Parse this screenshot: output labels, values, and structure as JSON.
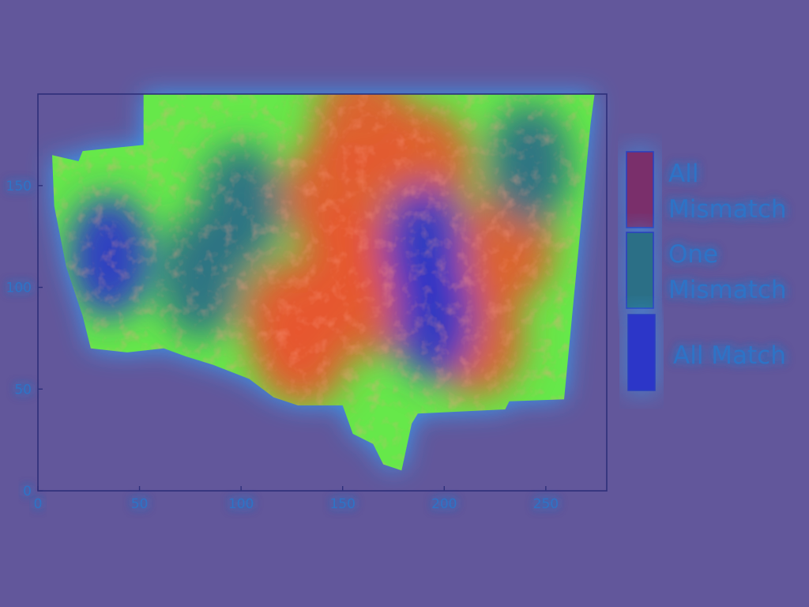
{
  "colors": {
    "background": "#62579b",
    "axis": "#2d2f7a",
    "tick_text": "#2f73c6",
    "glow": "#2ea8ff"
  },
  "chart_data": {
    "type": "heatmap",
    "title": "",
    "xlabel": "",
    "ylabel": "",
    "xlim": [
      0,
      280
    ],
    "ylim": [
      0,
      195
    ],
    "x_ticks": [
      0,
      50,
      100,
      150,
      200,
      250
    ],
    "y_ticks": [
      0,
      50,
      100,
      150
    ],
    "grid": false,
    "legend_position": "right",
    "legend": [
      {
        "label": [
          "All",
          "Mismatch"
        ],
        "color": "#7a2f6b",
        "text_color": "#2f73c6"
      },
      {
        "label": [
          "One",
          "Mismatch"
        ],
        "color": "#2b6f86",
        "text_color": "#2f73c6"
      },
      {
        "label": [
          "All Match"
        ],
        "color": "#2c36c8",
        "text_color": "#2f73c6"
      }
    ],
    "region_outline": [
      [
        7,
        165
      ],
      [
        20,
        162
      ],
      [
        22,
        167
      ],
      [
        52,
        170
      ],
      [
        52,
        195
      ],
      [
        274,
        195
      ],
      [
        272,
        180
      ],
      [
        259,
        45
      ],
      [
        232,
        44
      ],
      [
        230,
        40
      ],
      [
        187,
        38
      ],
      [
        184,
        33
      ],
      [
        179,
        10
      ],
      [
        170,
        13
      ],
      [
        165,
        23
      ],
      [
        155,
        28
      ],
      [
        150,
        42
      ],
      [
        128,
        42
      ],
      [
        116,
        46
      ],
      [
        104,
        55
      ],
      [
        86,
        62
      ],
      [
        73,
        66
      ],
      [
        62,
        70
      ],
      [
        44,
        68
      ],
      [
        26,
        70
      ],
      [
        22,
        86
      ],
      [
        14,
        110
      ],
      [
        8,
        140
      ]
    ],
    "heat_centers": [
      {
        "x": 145,
        "y": 145,
        "level": "all_mismatch"
      },
      {
        "x": 155,
        "y": 115,
        "level": "all_mismatch"
      },
      {
        "x": 165,
        "y": 95,
        "level": "all_mismatch"
      },
      {
        "x": 130,
        "y": 70,
        "level": "all_mismatch"
      },
      {
        "x": 125,
        "y": 85,
        "level": "all_mismatch"
      },
      {
        "x": 190,
        "y": 160,
        "level": "all_mismatch"
      },
      {
        "x": 230,
        "y": 120,
        "level": "all_mismatch"
      },
      {
        "x": 215,
        "y": 75,
        "level": "all_mismatch"
      },
      {
        "x": 160,
        "y": 180,
        "level": "all_mismatch"
      }
    ],
    "cool_regions": [
      {
        "x": 35,
        "y": 115,
        "level": "all_match"
      },
      {
        "x": 195,
        "y": 85,
        "level": "all_match"
      },
      {
        "x": 190,
        "y": 120,
        "level": "all_match"
      },
      {
        "x": 100,
        "y": 140,
        "level": "one_mismatch"
      },
      {
        "x": 242,
        "y": 160,
        "level": "one_mismatch"
      },
      {
        "x": 80,
        "y": 105,
        "level": "one_mismatch"
      }
    ]
  }
}
